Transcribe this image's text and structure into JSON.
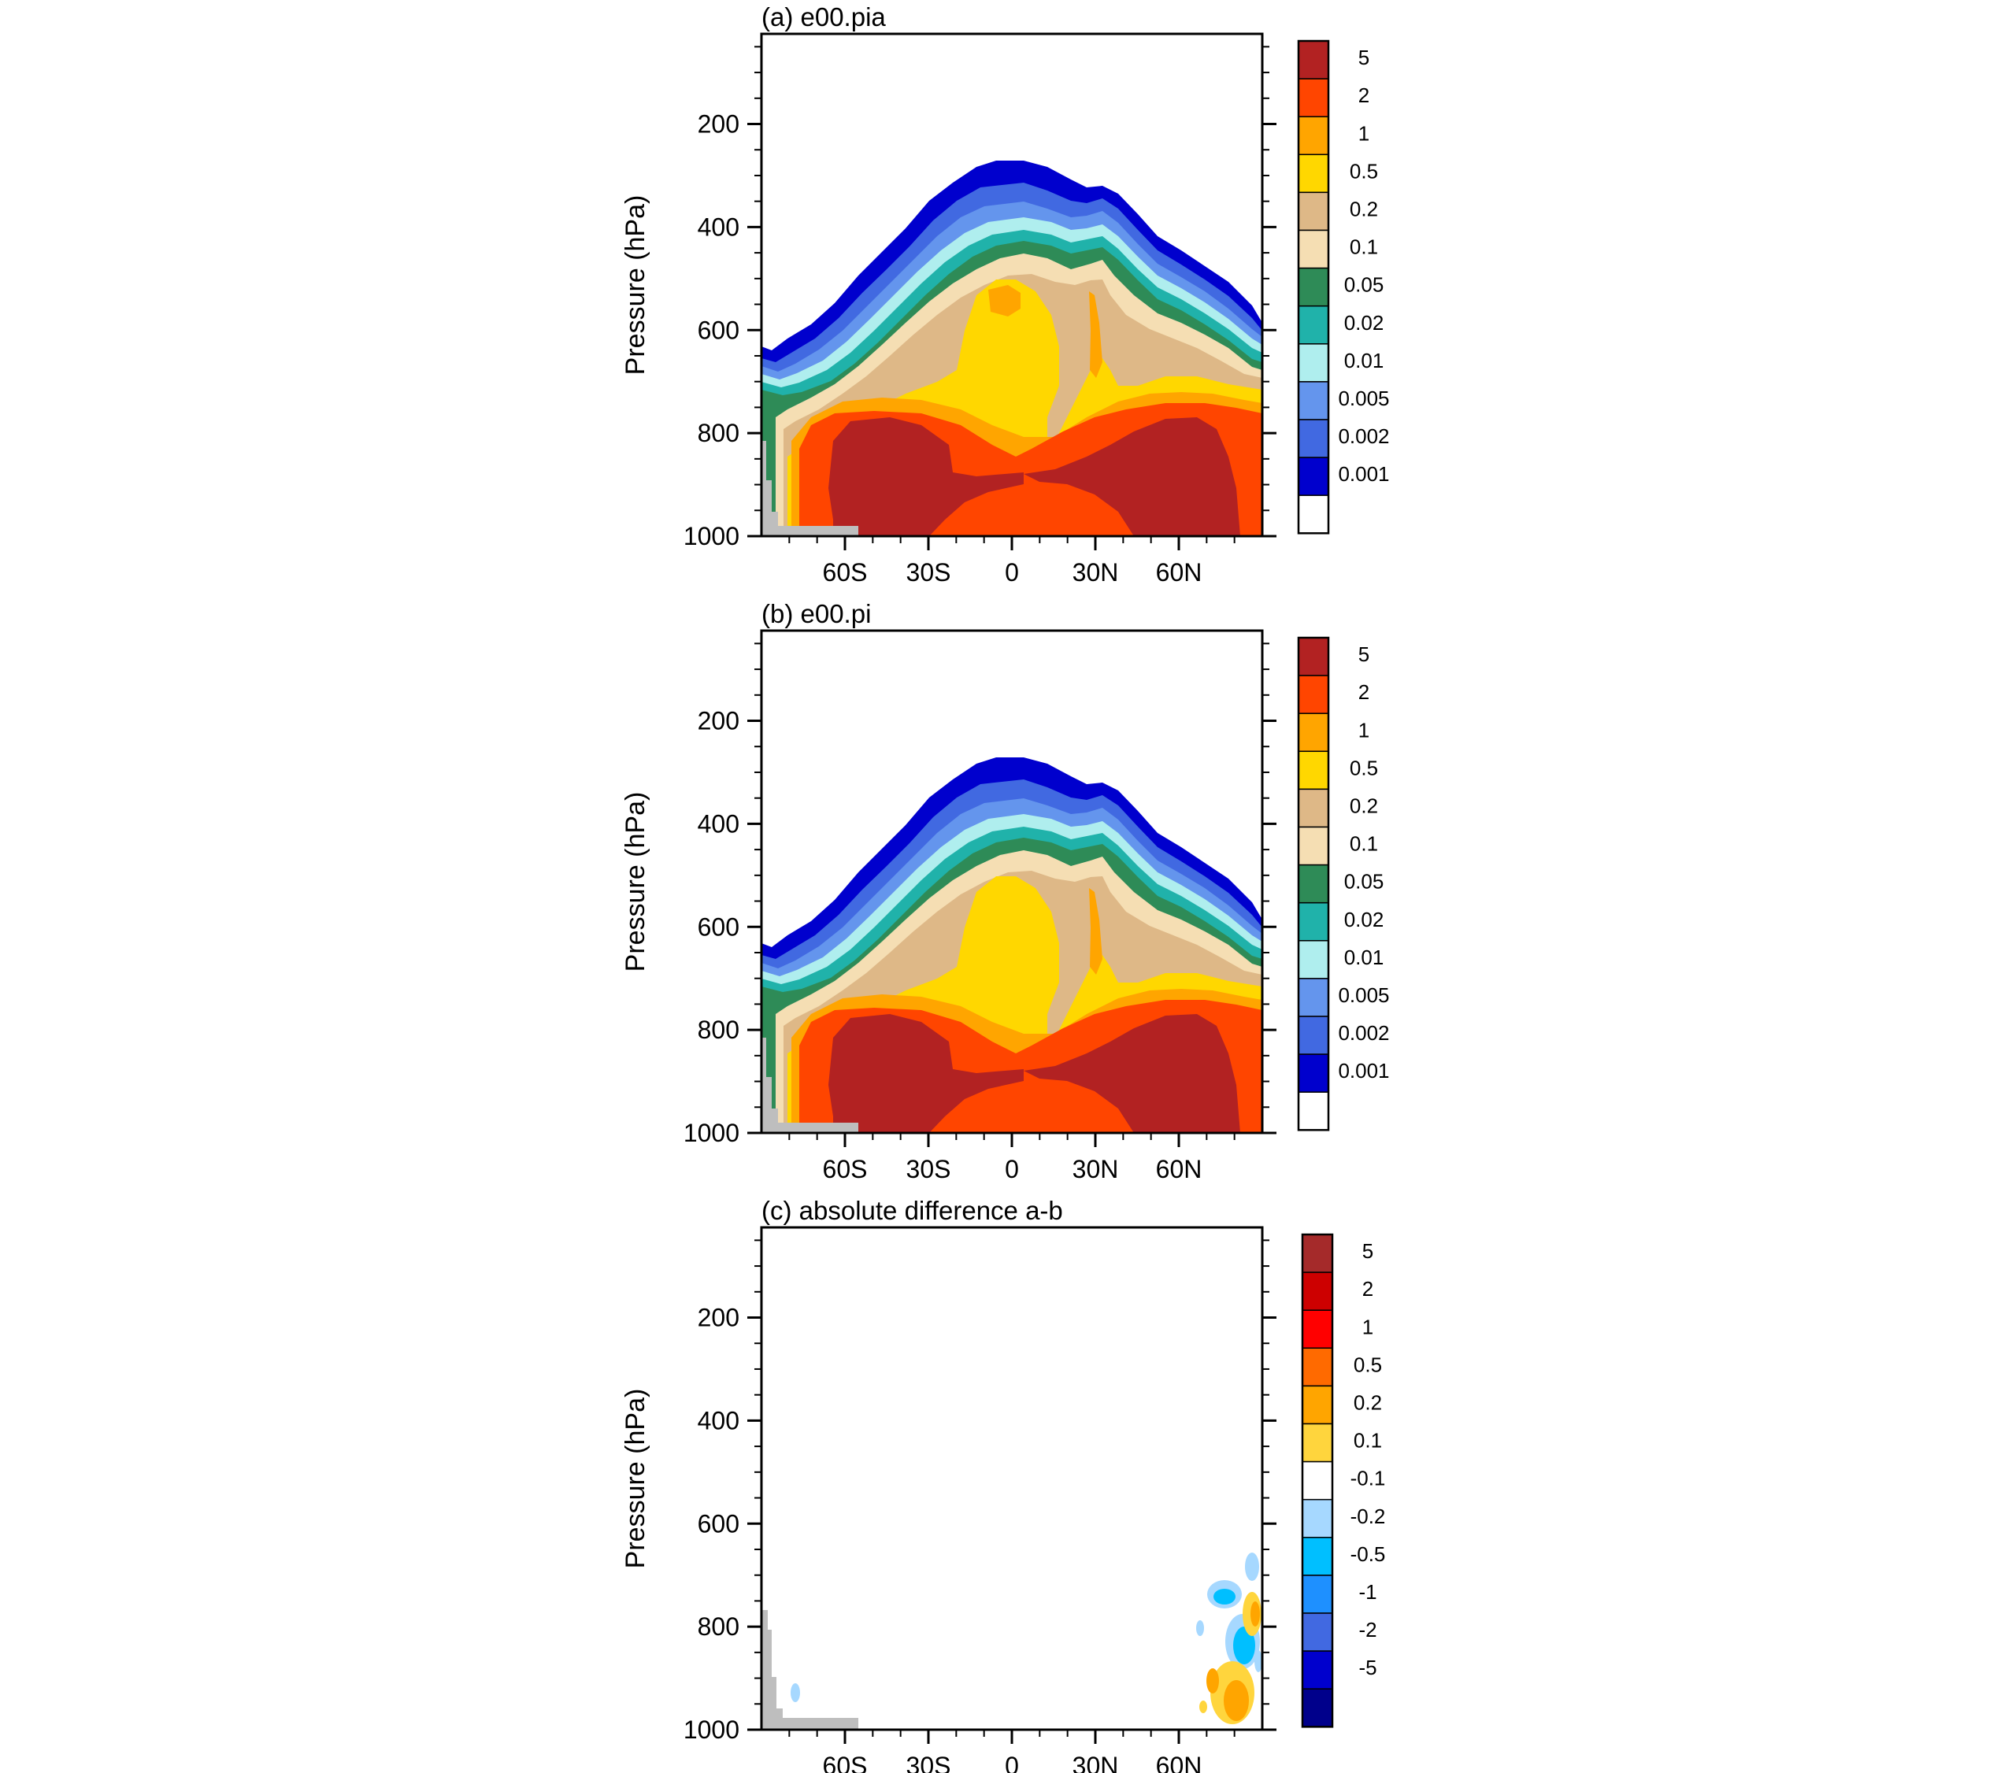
{
  "chart_data": [
    {
      "type": "heatmap",
      "panel": "a",
      "title": "(a) e00.pia",
      "ylabel": "Pressure (hPa)",
      "xlabel": "",
      "x_ticks": [
        "60S",
        "30S",
        "0",
        "30N",
        "60N"
      ],
      "x_tick_values": [
        -60,
        -30,
        0,
        30,
        60
      ],
      "xlim": [
        -90,
        90
      ],
      "y_ticks": [
        "200",
        "400",
        "600",
        "800",
        "1000"
      ],
      "y_tick_values": [
        200,
        400,
        600,
        800,
        1000
      ],
      "ylim": [
        1000,
        25
      ],
      "colorbar": {
        "labels": [
          "5",
          "2",
          "1",
          "0.5",
          "0.2",
          "0.1",
          "0.05",
          "0.02",
          "0.01",
          "0.005",
          "0.002",
          "0.001"
        ],
        "colors": [
          "#b22222",
          "#ff4500",
          "#ffa500",
          "#ffd700",
          "#deb887",
          "#f5deb3",
          "#2e8b57",
          "#20b2aa",
          "#afeeee",
          "#6495ed",
          "#4169e1",
          "#0000cd",
          "#ffffff"
        ]
      }
    },
    {
      "type": "heatmap",
      "panel": "b",
      "title": "(b) e00.pi",
      "ylabel": "Pressure (hPa)",
      "xlabel": "",
      "x_ticks": [
        "60S",
        "30S",
        "0",
        "30N",
        "60N"
      ],
      "x_tick_values": [
        -60,
        -30,
        0,
        30,
        60
      ],
      "xlim": [
        -90,
        90
      ],
      "y_ticks": [
        "200",
        "400",
        "600",
        "800",
        "1000"
      ],
      "y_tick_values": [
        200,
        400,
        600,
        800,
        1000
      ],
      "ylim": [
        1000,
        25
      ],
      "colorbar": {
        "labels": [
          "5",
          "2",
          "1",
          "0.5",
          "0.2",
          "0.1",
          "0.05",
          "0.02",
          "0.01",
          "0.005",
          "0.002",
          "0.001"
        ],
        "colors": [
          "#b22222",
          "#ff4500",
          "#ffa500",
          "#ffd700",
          "#deb887",
          "#f5deb3",
          "#2e8b57",
          "#20b2aa",
          "#afeeee",
          "#6495ed",
          "#4169e1",
          "#0000cd",
          "#ffffff"
        ]
      }
    },
    {
      "type": "heatmap",
      "panel": "c",
      "title": "(c) absolute difference a-b",
      "ylabel": "Pressure (hPa)",
      "xlabel": "",
      "x_ticks": [
        "60S",
        "30S",
        "0",
        "30N",
        "60N"
      ],
      "x_tick_values": [
        -60,
        -30,
        0,
        30,
        60
      ],
      "xlim": [
        -90,
        90
      ],
      "y_ticks": [
        "200",
        "400",
        "600",
        "800",
        "1000"
      ],
      "y_tick_values": [
        200,
        400,
        600,
        800,
        1000
      ],
      "ylim": [
        1000,
        25
      ],
      "colorbar": {
        "labels": [
          "5",
          "2",
          "1",
          "0.5",
          "0.2",
          "0.1",
          "-0.1",
          "-0.2",
          "-0.5",
          "-1",
          "-2",
          "-5"
        ],
        "colors": [
          "#a52a2a",
          "#cd0000",
          "#ff0000",
          "#ff6a00",
          "#ffa500",
          "#ffd53d",
          "#ffffff",
          "#a6d8ff",
          "#00bfff",
          "#1e90ff",
          "#4169e1",
          "#0000cd",
          "#00008b"
        ]
      }
    }
  ]
}
